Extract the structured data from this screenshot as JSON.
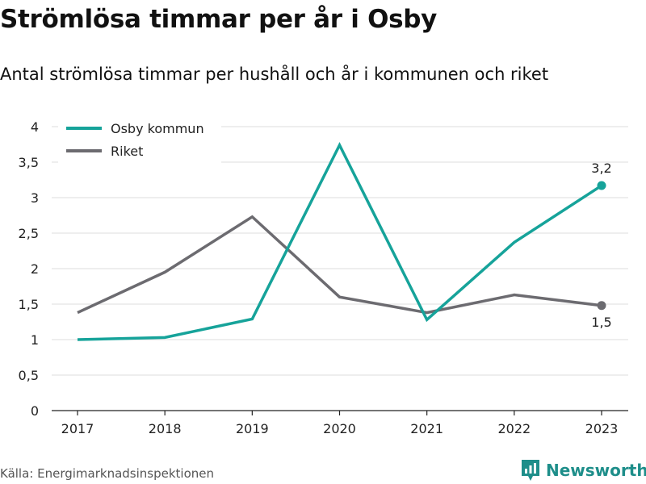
{
  "header": {
    "title": "Strömlösa timmar per år i Osby",
    "subtitle": "Antal strömlösa timmar per hushåll och år i kommunen och riket"
  },
  "footer": {
    "source": "Källa: Energimarknadsinspektionen",
    "brand": "Newsworthy",
    "brand_color": "#1e8e8a"
  },
  "chart_data": {
    "type": "line",
    "title": "Strömlösa timmar per år i Osby",
    "subtitle": "Antal strömlösa timmar per hushåll och år i kommunen och riket",
    "xlabel": "",
    "ylabel": "",
    "categories": [
      "2017",
      "2018",
      "2019",
      "2020",
      "2021",
      "2022",
      "2023"
    ],
    "ylim": [
      0,
      4
    ],
    "y_ticks": [
      0,
      0.5,
      1,
      1.5,
      2,
      2.5,
      3,
      3.5,
      4
    ],
    "y_tick_labels": [
      "0",
      "0,5",
      "1",
      "1,5",
      "2",
      "2,5",
      "3",
      "3,5",
      "4"
    ],
    "grid": "horizontal",
    "legend_position": "top-left",
    "series": [
      {
        "name": "Osby kommun",
        "color": "#16a39a",
        "values": [
          1.0,
          1.03,
          1.29,
          3.74,
          1.28,
          2.37,
          3.17
        ],
        "end_label": "3,2",
        "end_label_position": "above"
      },
      {
        "name": "Riket",
        "color": "#6c6b70",
        "values": [
          1.38,
          1.95,
          2.73,
          1.6,
          1.38,
          1.63,
          1.48
        ],
        "end_label": "1,5",
        "end_label_position": "below"
      }
    ]
  }
}
